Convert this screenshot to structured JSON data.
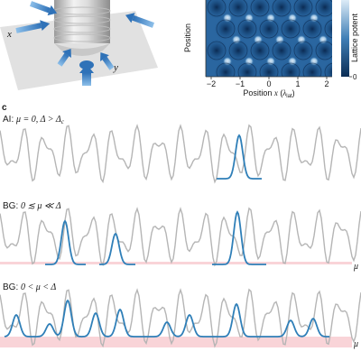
{
  "panel_a": {
    "axis_x": "x",
    "axis_y": "y"
  },
  "panel_b": {
    "ylabel": "Position",
    "xlabel_prefix": "Position ",
    "xlabel_var": "x",
    "xlabel_unit_open": " (",
    "xlabel_unit": "λ",
    "xlabel_unit_sub": "lat",
    "xlabel_unit_close": ")",
    "xticks": [
      "−2",
      "−1",
      "0",
      "1",
      "2"
    ],
    "colorbar_label": "Lattice potent",
    "colorbar_ticks": [
      "0"
    ]
  },
  "panel_c": {
    "label": "c",
    "rows": [
      {
        "title_phase": "AI: ",
        "title_cond": "μ = 0, Δ > Δ",
        "title_sub": "c",
        "mu_label": ""
      },
      {
        "title_phase": "BG: ",
        "title_cond": "0 ≲ μ ≪ Δ",
        "title_sub": "",
        "mu_label": "μ"
      },
      {
        "title_phase": "BG: ",
        "title_cond": "0 < μ < Δ",
        "title_sub": "",
        "mu_label": "μ"
      }
    ]
  },
  "colors": {
    "potential": "#b5b5b5",
    "wavefunction": "#2f7fb8",
    "band": "#f9d4d8",
    "lattice_dark": "#0b2d55",
    "lattice_light": "#dcebf7",
    "beam": "#3a83c9"
  }
}
